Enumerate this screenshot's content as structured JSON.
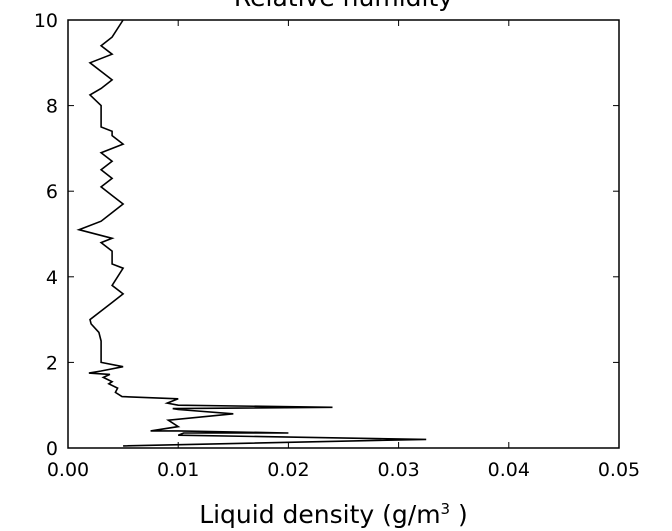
{
  "chart_data": {
    "type": "line",
    "title": "Relative humidity",
    "xlabel_main": "Liquid density (g/m",
    "xlabel_sup": "3",
    "xlabel_end": " )",
    "ylabel": "",
    "xlim": [
      0,
      0.05
    ],
    "ylim": [
      0,
      10
    ],
    "xticks": [
      0.0,
      0.01,
      0.02,
      0.03,
      0.04,
      0.05
    ],
    "xtick_labels": [
      "0.00",
      "0.01",
      "0.02",
      "0.03",
      "0.04",
      "0.05"
    ],
    "yticks": [
      0,
      2,
      4,
      6,
      8,
      10
    ],
    "ytick_labels": [
      "0",
      "2",
      "4",
      "6",
      "8",
      "10"
    ],
    "grid": false,
    "line_color": "#000000",
    "series": [
      {
        "x": [
          0.005,
          0.0325,
          0.01,
          0.0105,
          0.02,
          0.01,
          0.0075,
          0.01,
          0.0091,
          0.015,
          0.01,
          0.0095,
          0.024,
          0.01,
          0.009,
          0.01,
          0.0049,
          0.0043,
          0.0045,
          0.0037,
          0.004,
          0.0032,
          0.0038,
          0.0019,
          0.003,
          0.005,
          0.003,
          0.003,
          0.0028,
          0.0021,
          0.002,
          0.003,
          0.004,
          0.005,
          0.004,
          0.005,
          0.004,
          0.004,
          0.003,
          0.004,
          0.001,
          0.003,
          0.004,
          0.005,
          0.004,
          0.003,
          0.004,
          0.003,
          0.004,
          0.003,
          0.005,
          0.004,
          0.004,
          0.003,
          0.003,
          0.002,
          0.003,
          0.004,
          0.003,
          0.002,
          0.004,
          0.003,
          0.004,
          0.005
        ],
        "y": [
          0.05,
          0.2,
          0.3,
          0.35,
          0.35,
          0.4,
          0.4,
          0.5,
          0.65,
          0.8,
          0.9,
          0.92,
          0.95,
          1.0,
          1.05,
          1.15,
          1.2,
          1.3,
          1.4,
          1.5,
          1.55,
          1.65,
          1.72,
          1.75,
          1.8,
          1.9,
          2.0,
          2.5,
          2.7,
          2.9,
          3.0,
          3.2,
          3.4,
          3.6,
          3.8,
          4.2,
          4.3,
          4.6,
          4.8,
          4.9,
          5.1,
          5.3,
          5.5,
          5.7,
          5.9,
          6.1,
          6.3,
          6.5,
          6.7,
          6.9,
          7.1,
          7.3,
          7.4,
          7.5,
          8.0,
          8.25,
          8.4,
          8.6,
          8.8,
          9.0,
          9.2,
          9.4,
          9.6,
          10.0
        ]
      }
    ]
  }
}
